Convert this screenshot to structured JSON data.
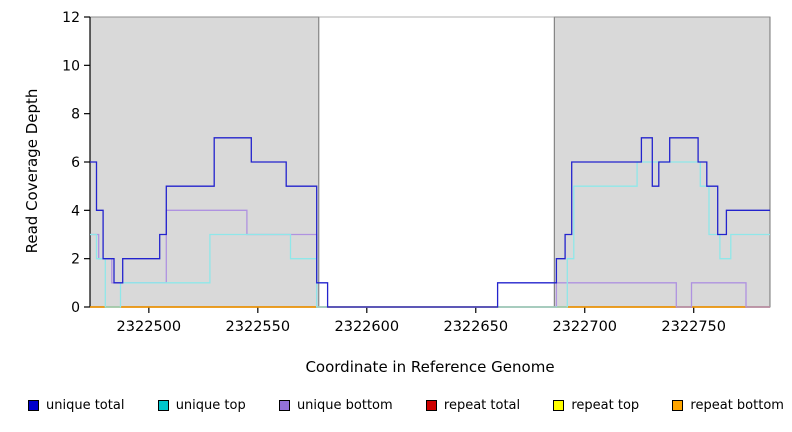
{
  "chart_data": {
    "type": "line",
    "variant": "step",
    "title": "",
    "xlabel": "Coordinate in Reference Genome",
    "ylabel": "Read Coverage Depth",
    "xlim": [
      2322473,
      2322785
    ],
    "ylim": [
      0,
      12
    ],
    "x_ticks": [
      2322500,
      2322550,
      2322600,
      2322650,
      2322700,
      2322750
    ],
    "y_ticks": [
      0,
      2,
      4,
      6,
      8,
      10,
      12
    ],
    "grid": false,
    "shade_color": "#d9d9d9",
    "shade_border_color": "#555555",
    "shaded_regions": [
      {
        "start": 2322473,
        "end": 2322578
      },
      {
        "start": 2322686,
        "end": 2322785
      }
    ],
    "series": [
      {
        "name": "repeat total",
        "color": "#cd0000",
        "points": [
          [
            2322473,
            0
          ]
        ]
      },
      {
        "name": "repeat top",
        "color": "#f0f000",
        "points": [
          [
            2322473,
            0
          ]
        ]
      },
      {
        "name": "repeat bottom",
        "color": "#ff9d00",
        "points": [
          [
            2322473,
            0
          ]
        ]
      },
      {
        "name": "unique bottom",
        "color": "#af92e0",
        "points": [
          [
            2322473,
            3
          ],
          [
            2322477,
            2
          ],
          [
            2322483,
            1
          ],
          [
            2322508,
            4
          ],
          [
            2322545,
            3
          ],
          [
            2322577,
            0
          ],
          [
            2322687,
            1
          ],
          [
            2322742,
            0
          ],
          [
            2322749,
            1
          ],
          [
            2322774,
            0
          ]
        ]
      },
      {
        "name": "unique top",
        "color": "#8fe7e9",
        "points": [
          [
            2322473,
            3
          ],
          [
            2322476,
            2
          ],
          [
            2322480,
            0
          ],
          [
            2322487,
            1
          ],
          [
            2322528,
            3
          ],
          [
            2322565,
            2
          ],
          [
            2322577,
            0
          ],
          [
            2322692,
            2
          ],
          [
            2322695,
            5
          ],
          [
            2322724,
            6
          ],
          [
            2322753,
            5
          ],
          [
            2322757,
            3
          ],
          [
            2322762,
            2
          ],
          [
            2322767,
            3
          ]
        ]
      },
      {
        "name": "unique total",
        "color": "#2323cd",
        "points": [
          [
            2322473,
            6
          ],
          [
            2322476,
            4
          ],
          [
            2322479,
            2
          ],
          [
            2322484,
            1
          ],
          [
            2322488,
            2
          ],
          [
            2322505,
            3
          ],
          [
            2322508,
            5
          ],
          [
            2322530,
            7
          ],
          [
            2322547,
            6
          ],
          [
            2322563,
            5
          ],
          [
            2322577,
            1
          ],
          [
            2322582,
            0
          ],
          [
            2322660,
            1
          ],
          [
            2322687,
            2
          ],
          [
            2322691,
            3
          ],
          [
            2322694,
            6
          ],
          [
            2322726,
            7
          ],
          [
            2322731,
            5
          ],
          [
            2322734,
            6
          ],
          [
            2322739,
            7
          ],
          [
            2322752,
            6
          ],
          [
            2322756,
            5
          ],
          [
            2322761,
            3
          ],
          [
            2322765,
            4
          ]
        ]
      }
    ],
    "legend": [
      {
        "label": "unique total",
        "color": "#0000cd"
      },
      {
        "label": "unique top",
        "color": "#00c5cd"
      },
      {
        "label": "unique bottom",
        "color": "#9370db"
      },
      {
        "label": "repeat total",
        "color": "#cd0000"
      },
      {
        "label": "repeat top",
        "color": "#ffff00"
      },
      {
        "label": "repeat bottom",
        "color": "#ffa500"
      }
    ],
    "legend_position": "bottom"
  }
}
